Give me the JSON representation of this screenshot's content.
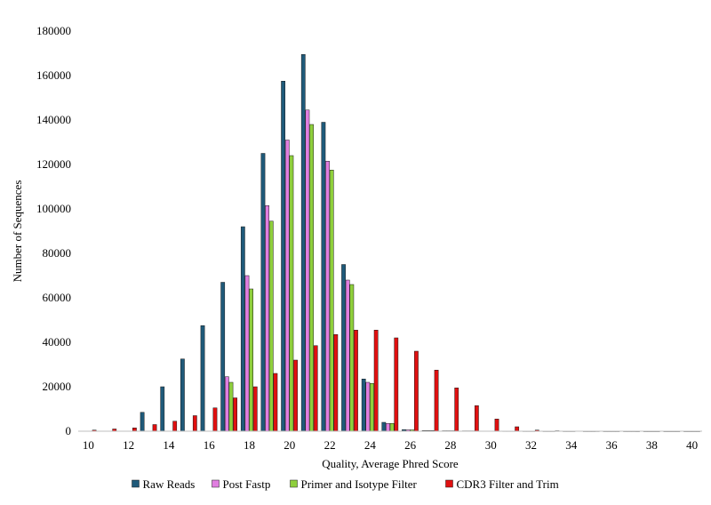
{
  "chart_data": {
    "type": "bar",
    "xlabel": "Quality, Average Phred Score",
    "ylabel": "Number of Sequences",
    "ylim": [
      0,
      180000
    ],
    "xlim": [
      9.5,
      40.5
    ],
    "x_ticks": [
      10,
      12,
      14,
      16,
      18,
      20,
      22,
      24,
      26,
      28,
      30,
      32,
      34,
      36,
      38,
      40
    ],
    "y_ticks": [
      0,
      20000,
      40000,
      60000,
      80000,
      100000,
      120000,
      140000,
      160000,
      180000
    ],
    "grid": false,
    "legend_position": "bottom",
    "x": [
      10,
      11,
      12,
      13,
      14,
      15,
      16,
      17,
      18,
      19,
      20,
      21,
      22,
      23,
      24,
      25,
      26,
      27,
      28,
      29,
      30,
      31,
      32,
      33,
      34,
      35,
      36,
      37,
      38,
      39,
      40
    ],
    "series": [
      {
        "name": "Raw Reads",
        "color": "#1f5a7a",
        "values": [
          0,
          0,
          0,
          8500,
          20000,
          32500,
          47500,
          67000,
          92000,
          125000,
          157500,
          169500,
          139000,
          75000,
          23500,
          4000,
          700,
          300,
          200,
          150,
          100,
          80,
          60,
          50,
          40,
          30,
          20,
          20,
          10,
          10,
          10
        ]
      },
      {
        "name": "Post Fastp",
        "color": "#e07ee0",
        "values": [
          0,
          0,
          0,
          0,
          0,
          0,
          0,
          24500,
          70000,
          101500,
          131000,
          144500,
          121500,
          68000,
          22000,
          3500,
          600,
          300,
          200,
          150,
          100,
          80,
          60,
          50,
          40,
          30,
          20,
          20,
          10,
          10,
          10
        ]
      },
      {
        "name": "Primer and Isotype Filter",
        "color": "#8fcf3c",
        "values": [
          0,
          0,
          0,
          0,
          0,
          0,
          0,
          22000,
          64000,
          94500,
          124000,
          138000,
          117500,
          66000,
          21500,
          3500,
          600,
          300,
          200,
          150,
          100,
          80,
          60,
          50,
          40,
          30,
          20,
          20,
          10,
          10,
          10
        ]
      },
      {
        "name": "CDR3 Filter and Trim",
        "color": "#e01010",
        "values": [
          500,
          1000,
          1500,
          3000,
          4500,
          7000,
          10500,
          15000,
          20000,
          26000,
          32000,
          38500,
          43500,
          45500,
          45500,
          42000,
          36000,
          27500,
          19500,
          11500,
          5500,
          2000,
          500,
          200,
          100,
          50,
          20,
          10,
          10,
          10,
          10
        ]
      }
    ]
  }
}
